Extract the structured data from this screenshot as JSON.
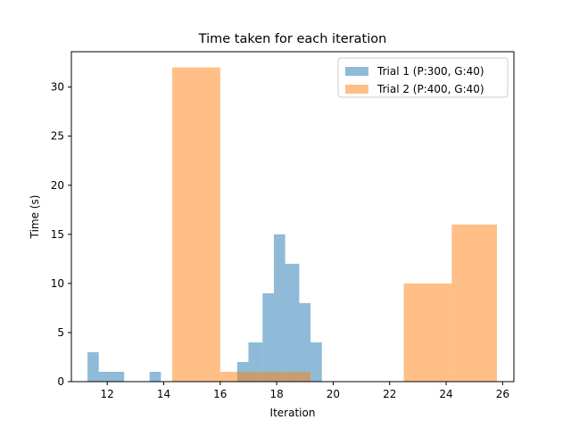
{
  "chart_data": {
    "type": "bar",
    "title": "Time taken for each iteration",
    "xlabel": "Iteration",
    "ylabel": "Time (s)",
    "xlim": [
      10.73,
      26.4
    ],
    "ylim": [
      0,
      33.6
    ],
    "xticks": [
      12,
      14,
      16,
      18,
      20,
      22,
      24,
      26
    ],
    "yticks": [
      0,
      5,
      10,
      15,
      20,
      25,
      30
    ],
    "grid": false,
    "legend_position": "top-right",
    "series": [
      {
        "name": "Trial 1 (P:300, G:40)",
        "color": "#1f77b4",
        "alpha": 0.5,
        "bins": [
          {
            "x0": 11.3,
            "x1": 11.7,
            "value": 3
          },
          {
            "x0": 11.7,
            "x1": 12.1,
            "value": 1
          },
          {
            "x0": 12.1,
            "x1": 12.6,
            "value": 1
          },
          {
            "x0": 13.5,
            "x1": 13.9,
            "value": 1
          },
          {
            "x0": 16.6,
            "x1": 17.0,
            "value": 2
          },
          {
            "x0": 17.0,
            "x1": 17.5,
            "value": 4
          },
          {
            "x0": 17.5,
            "x1": 17.9,
            "value": 9
          },
          {
            "x0": 17.9,
            "x1": 18.3,
            "value": 15
          },
          {
            "x0": 18.3,
            "x1": 18.8,
            "value": 12
          },
          {
            "x0": 18.8,
            "x1": 19.2,
            "value": 8
          },
          {
            "x0": 19.2,
            "x1": 19.6,
            "value": 4
          }
        ]
      },
      {
        "name": "Trial 2 (P:400, G:40)",
        "color": "#ff7f0e",
        "alpha": 0.5,
        "bins": [
          {
            "x0": 14.3,
            "x1": 16.0,
            "value": 32
          },
          {
            "x0": 16.0,
            "x1": 16.6,
            "value": 1
          },
          {
            "x0": 16.6,
            "x1": 19.2,
            "value": 1
          },
          {
            "x0": 22.5,
            "x1": 24.2,
            "value": 10
          },
          {
            "x0": 24.2,
            "x1": 25.8,
            "value": 16
          }
        ]
      }
    ]
  }
}
